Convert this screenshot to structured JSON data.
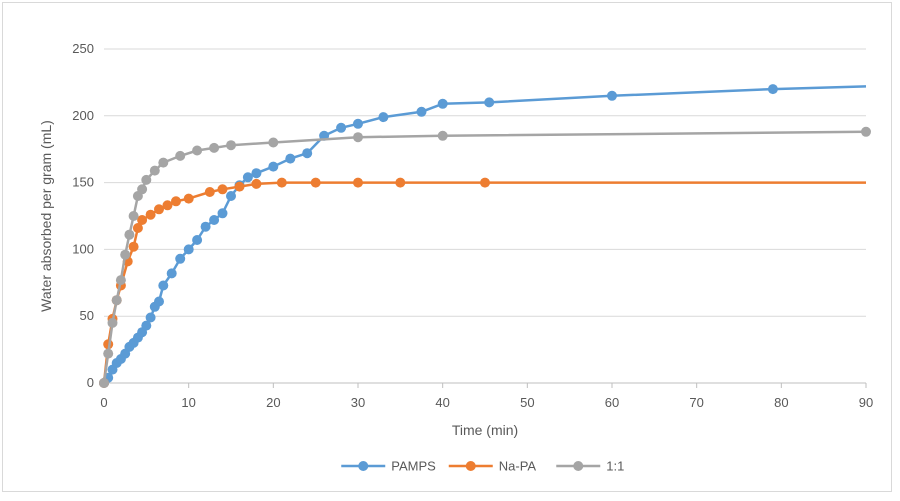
{
  "chart_data": {
    "type": "line",
    "title": "",
    "xlabel": "Time (min)",
    "ylabel": "Water absorbed per gram (mL)",
    "xlim": [
      0,
      90
    ],
    "ylim": [
      0,
      250
    ],
    "xticks": [
      0,
      10,
      20,
      30,
      40,
      50,
      60,
      70,
      80,
      90
    ],
    "yticks": [
      0,
      50,
      100,
      150,
      200,
      250
    ],
    "grid": "horizontal",
    "legend_position": "bottom",
    "series": [
      {
        "name": "PAMPS",
        "color": "#5b9bd5",
        "points": [
          [
            0,
            0
          ],
          [
            0.5,
            4
          ],
          [
            1,
            10
          ],
          [
            1.5,
            15
          ],
          [
            2,
            18
          ],
          [
            2.5,
            22
          ],
          [
            3,
            27
          ],
          [
            3.5,
            30
          ],
          [
            4,
            34
          ],
          [
            4.5,
            38
          ],
          [
            5,
            43
          ],
          [
            5.5,
            49
          ],
          [
            6,
            57
          ],
          [
            6.5,
            61
          ],
          [
            7,
            73
          ],
          [
            8,
            82
          ],
          [
            9,
            93
          ],
          [
            10,
            100
          ],
          [
            11,
            107
          ],
          [
            12,
            117
          ],
          [
            13,
            122
          ],
          [
            14,
            127
          ],
          [
            15,
            140
          ],
          [
            16,
            148
          ],
          [
            17,
            154
          ],
          [
            18,
            157
          ],
          [
            20,
            162
          ],
          [
            22,
            168
          ],
          [
            24,
            172
          ],
          [
            26,
            185
          ],
          [
            28,
            191
          ],
          [
            30,
            194
          ],
          [
            33,
            199
          ],
          [
            37.5,
            203
          ],
          [
            40,
            209
          ],
          [
            45.5,
            210
          ],
          [
            60,
            215
          ],
          [
            79,
            220
          ]
        ],
        "line_end": [
          90,
          222
        ]
      },
      {
        "name": "Na-PA",
        "color": "#ed7d31",
        "points": [
          [
            0,
            0
          ],
          [
            0.5,
            29
          ],
          [
            1,
            48
          ],
          [
            1.5,
            62
          ],
          [
            2,
            73
          ],
          [
            2.8,
            91
          ],
          [
            3.5,
            102
          ],
          [
            4,
            116
          ],
          [
            4.5,
            122
          ],
          [
            5.5,
            126
          ],
          [
            6.5,
            130
          ],
          [
            7.5,
            133
          ],
          [
            8.5,
            136
          ],
          [
            10,
            138
          ],
          [
            12.5,
            143
          ],
          [
            14,
            145
          ],
          [
            16,
            147
          ],
          [
            18,
            149
          ],
          [
            21,
            150
          ],
          [
            25,
            150
          ],
          [
            30,
            150
          ],
          [
            35,
            150
          ],
          [
            45,
            150
          ]
        ],
        "line_end": [
          90,
          150
        ]
      },
      {
        "name": "1:1",
        "color": "#a5a5a5",
        "points": [
          [
            0,
            0
          ],
          [
            0.5,
            22
          ],
          [
            1,
            45
          ],
          [
            1.5,
            62
          ],
          [
            2,
            77
          ],
          [
            2.5,
            96
          ],
          [
            3,
            111
          ],
          [
            3.5,
            125
          ],
          [
            4,
            140
          ],
          [
            4.5,
            145
          ],
          [
            5,
            152
          ],
          [
            6,
            159
          ],
          [
            7,
            165
          ],
          [
            9,
            170
          ],
          [
            11,
            174
          ],
          [
            13,
            176
          ],
          [
            15,
            178
          ],
          [
            20,
            180
          ],
          [
            30,
            184
          ],
          [
            40,
            185
          ],
          [
            90,
            188
          ]
        ]
      }
    ]
  }
}
